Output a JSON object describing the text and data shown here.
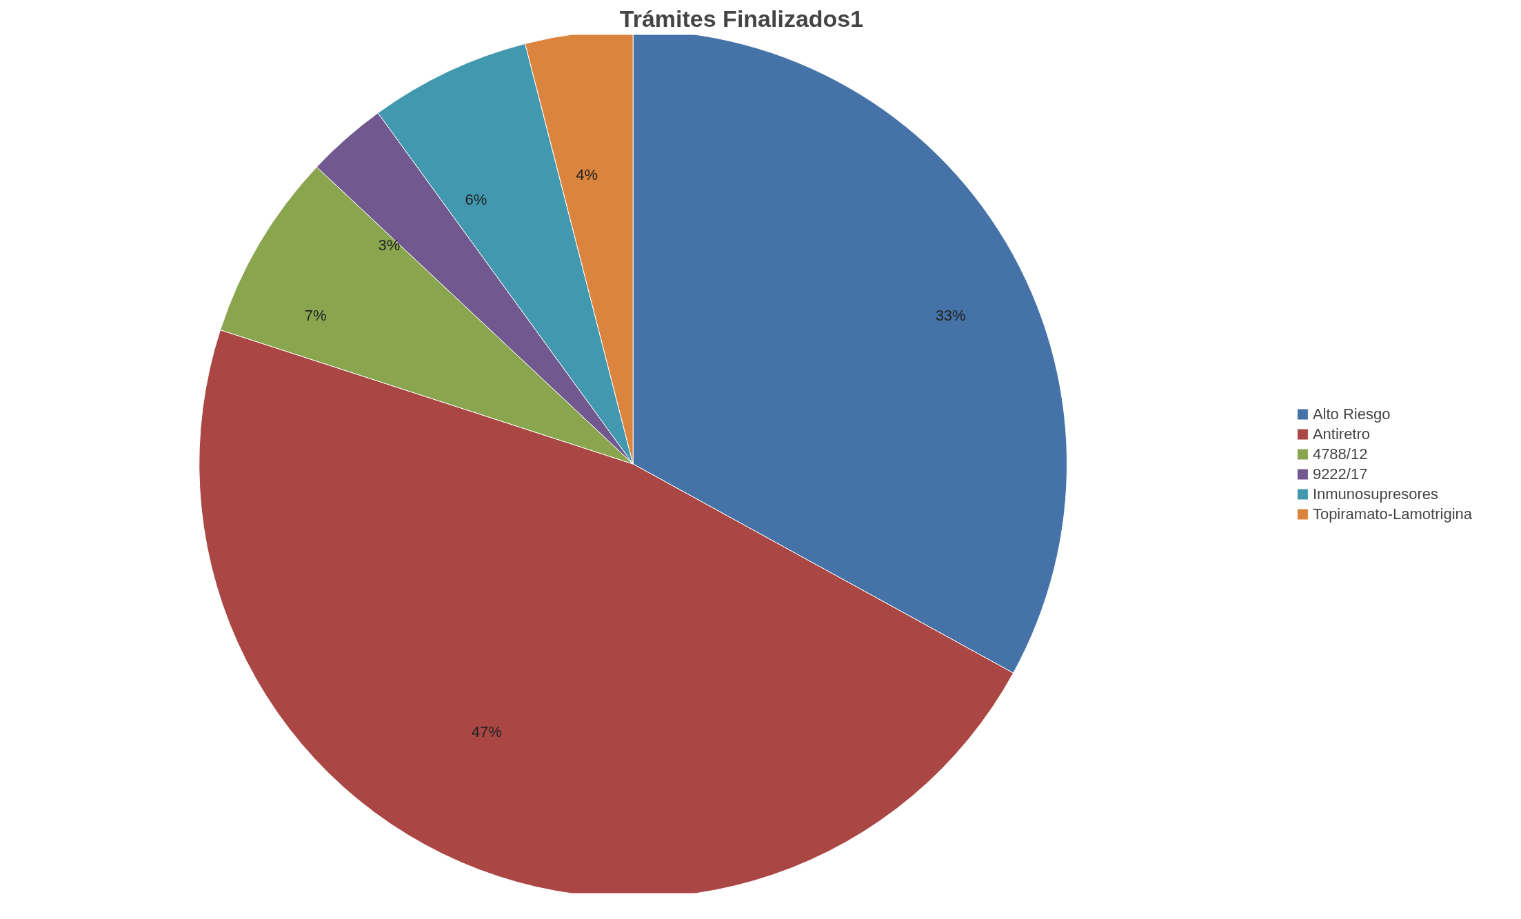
{
  "chart_data": {
    "type": "pie",
    "title": "Trámites Finalizados1",
    "categories": [
      "Alto Riesgo",
      "Antiretro",
      "4788/12",
      "9222/17",
      "Inmunosupresores",
      "Topiramato-Lamotrigina"
    ],
    "values": [
      33,
      47,
      7,
      3,
      6,
      4
    ],
    "colors": [
      "#4572a7",
      "#aa4643",
      "#89a54e",
      "#71588f",
      "#4198af",
      "#db843d"
    ],
    "value_labels": [
      "33%",
      "47%",
      "7%",
      "3%",
      "6%",
      "4%"
    ],
    "legend": "right"
  }
}
